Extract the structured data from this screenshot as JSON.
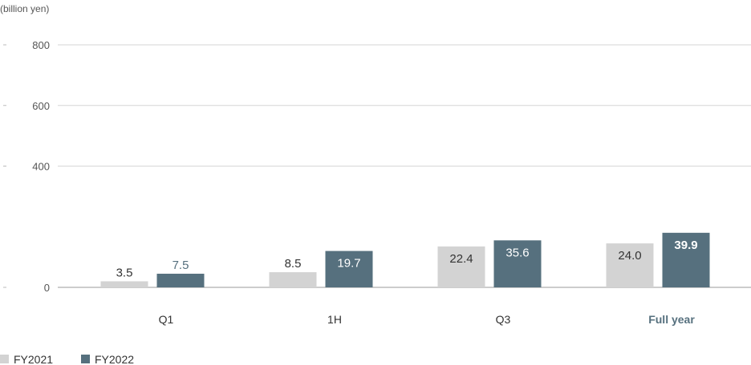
{
  "chart_data": {
    "type": "bar",
    "unit_label": "(billion yen)",
    "categories": [
      "Q1",
      "1H",
      "Q3",
      "Full year"
    ],
    "highlight_category": "Full year",
    "yticks": [
      0,
      400,
      600,
      800
    ],
    "ylim": [
      0,
      800
    ],
    "grid": true,
    "legend_position": "bottom-left",
    "series": [
      {
        "name": "FY2021",
        "color": "#d3d3d3",
        "values": [
          20,
          50,
          135,
          145
        ],
        "labels": [
          "3.5",
          "8.5",
          "22.4",
          "24.0"
        ]
      },
      {
        "name": "FY2022",
        "color": "#56707e",
        "values": [
          45,
          120,
          155,
          180
        ],
        "labels": [
          "7.5",
          "19.7",
          "35.6",
          "39.9"
        ]
      }
    ]
  }
}
